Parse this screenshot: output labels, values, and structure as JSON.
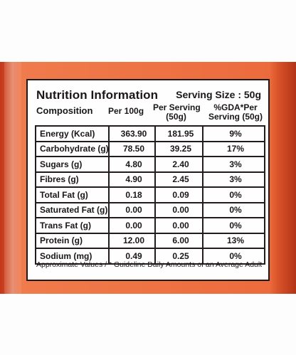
{
  "colors": {
    "pack_orange": "#ec6b3d",
    "ink": "#1b1717"
  },
  "label": {
    "title": "Nutrition Information",
    "serving_size": "Serving Size : 50g",
    "headers": {
      "composition": "Composition",
      "per_100g": "Per 100g",
      "per_serving_line1": "Per Serving",
      "per_serving_line2": "(50g)",
      "gda_line1": "%GDA*Per",
      "gda_line2": "Serving (50g)"
    },
    "rows": [
      {
        "name": "Energy (Kcal)",
        "per_100g": "363.90",
        "per_serving": "181.95",
        "gda": "9%"
      },
      {
        "name": "Carbohydrate (g)",
        "per_100g": "78.50",
        "per_serving": "39.25",
        "gda": "17%"
      },
      {
        "name": "Sugars (g)",
        "per_100g": "4.80",
        "per_serving": "2.40",
        "gda": "3%"
      },
      {
        "name": "Fibres (g)",
        "per_100g": "4.90",
        "per_serving": "2.45",
        "gda": "3%"
      },
      {
        "name": "Total Fat (g)",
        "per_100g": "0.18",
        "per_serving": "0.09",
        "gda": "0%"
      },
      {
        "name": "Saturated Fat (g)",
        "per_100g": "0.00",
        "per_serving": "0.00",
        "gda": "0%"
      },
      {
        "name": "Trans Fat (g)",
        "per_100g": "0.00",
        "per_serving": "0.00",
        "gda": "0%"
      },
      {
        "name": "Protein (g)",
        "per_100g": "12.00",
        "per_serving": "6.00",
        "gda": "13%"
      },
      {
        "name": "Sodium (mg)",
        "per_100g": "0.49",
        "per_serving": "0.25",
        "gda": "0%"
      }
    ],
    "footnote": "Approximate Values / * Guideline Daily Amounts of an Average Adult"
  }
}
